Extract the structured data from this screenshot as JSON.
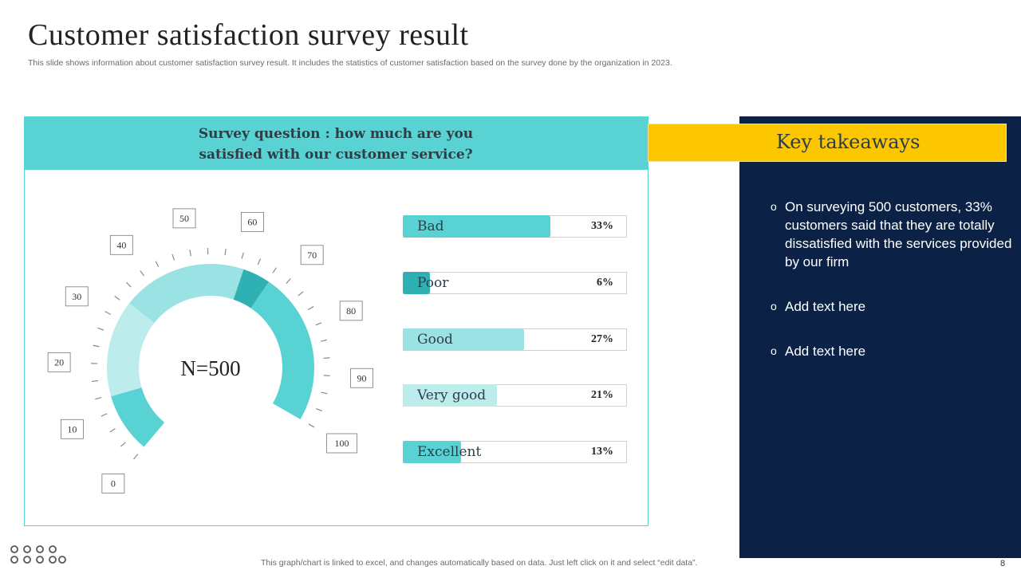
{
  "header": {
    "title": "Customer satisfaction survey result",
    "subtitle": "This slide shows information about customer satisfaction survey result. It includes the statistics of customer satisfaction based on the survey done by the organization in 2023."
  },
  "panel": {
    "question_line1": "Survey question : how much are you",
    "question_line2": "satisfied with our customer service?",
    "center_label": "N=500"
  },
  "chart_data": [
    {
      "type": "gauge",
      "center_label": "N=500",
      "scale_min": 0,
      "scale_max": 100,
      "tick_labels": [
        "0",
        "10",
        "20",
        "30",
        "40",
        "50",
        "60",
        "70",
        "80",
        "90",
        "100"
      ],
      "segments": [
        {
          "name": "Bad",
          "value": 33
        },
        {
          "name": "Poor",
          "value": 6
        },
        {
          "name": "Good",
          "value": 27
        },
        {
          "name": "Very good",
          "value": 21
        },
        {
          "name": "Excellent",
          "value": 13
        }
      ]
    },
    {
      "type": "bar",
      "orientation": "horizontal",
      "categories": [
        "Bad",
        "Poor",
        "Good",
        "Very good",
        "Excellent"
      ],
      "values": [
        33,
        6,
        27,
        21,
        13
      ],
      "value_labels": [
        "33%",
        "6%",
        "27%",
        "21%",
        "13%"
      ],
      "xlim": [
        0,
        50
      ],
      "colors": [
        "#59d2d3",
        "#2fb1b3",
        "#9be2e4",
        "#bdeced",
        "#59d2d3"
      ]
    }
  ],
  "sidebar": {
    "heading": "Key takeaways",
    "bullets": [
      "On surveying 500 customers, 33% customers said that they are totally dissatisfied with the services provided by our firm",
      "Add text here",
      "Add text here"
    ],
    "bullet_marker": "o"
  },
  "footer": {
    "note": "This graph/chart is linked to excel,  and changes automatically based on data. Just left click on it and select “edit data”.",
    "page_number": "8"
  },
  "colors": {
    "teal": "#59d2d3",
    "dark_teal": "#2fb1b3",
    "light_teal": "#9be2e4",
    "pale_teal": "#bdeced",
    "navy": "#0b2246",
    "yellow": "#fdc700"
  }
}
